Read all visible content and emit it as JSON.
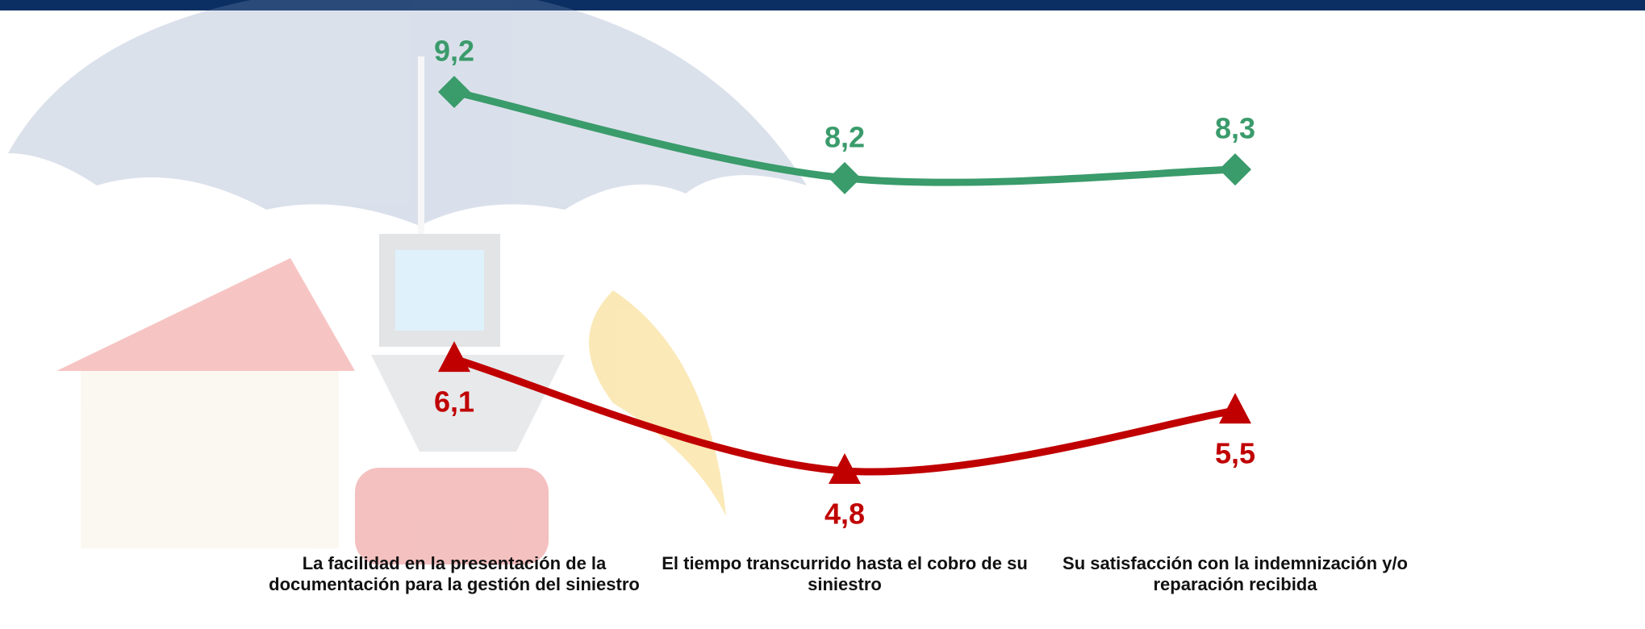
{
  "chart_data": {
    "type": "line",
    "categories": [
      "La facilidad en la presentación de la documentación para la gestión del siniestro",
      "El tiempo transcurrido hasta el cobro de su siniestro",
      "Su satisfacción con la indemnización y/o reparación recibida"
    ],
    "series": [
      {
        "color": "#3a9b6b",
        "marker": "diamond",
        "values": [
          9.2,
          8.2,
          8.3
        ],
        "value_labels": [
          "9,2",
          "8,2",
          "8,3"
        ]
      },
      {
        "color": "#c00000",
        "marker": "triangle",
        "values": [
          6.1,
          4.8,
          5.5
        ],
        "value_labels": [
          "6,1",
          "4,8",
          "5,5"
        ]
      }
    ]
  }
}
